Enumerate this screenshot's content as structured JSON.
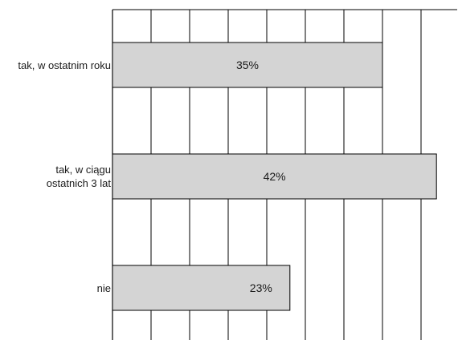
{
  "chart_data": {
    "type": "bar",
    "orientation": "horizontal",
    "categories": [
      [
        "tak, w ostatnim roku"
      ],
      [
        "tak, w ciągu",
        "ostatnich 3 lat"
      ],
      [
        "nie"
      ]
    ],
    "values": [
      35,
      42,
      23
    ],
    "value_labels": [
      "35%",
      "42%",
      "23%"
    ],
    "xlim": [
      0,
      45
    ],
    "grid": true,
    "colors": {
      "bar_fill": "#d4d4d4",
      "bar_stroke": "#000000",
      "grid": "#000000"
    }
  }
}
